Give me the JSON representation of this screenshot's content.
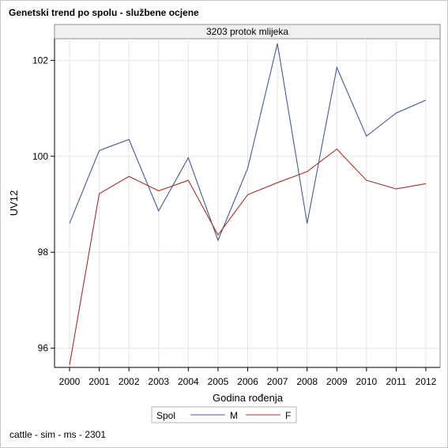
{
  "chart_data": {
    "type": "line",
    "title": "Genetski trend po spolu - službene ocjene",
    "panel_title": "3203 protok mlijeka",
    "xlabel": "Godina rođenja",
    "ylabel": "UV12",
    "categories": [
      "2000",
      "2001",
      "2002",
      "2003",
      "2004",
      "2005",
      "2006",
      "2007",
      "2008",
      "2009",
      "2010",
      "2011",
      "2012"
    ],
    "yticks": [
      96,
      98,
      100,
      102
    ],
    "ylim": [
      95.6,
      102.45
    ],
    "grid": true,
    "legend": {
      "title": "Spol",
      "placement": "bottom"
    },
    "series": [
      {
        "name": "M",
        "color": "#4a5a8c",
        "values": [
          98.6,
          100.12,
          100.35,
          98.86,
          99.97,
          98.25,
          99.75,
          102.35,
          98.6,
          101.85,
          100.42,
          100.9,
          101.17
        ]
      },
      {
        "name": "F",
        "color": "#a0322d",
        "values": [
          95.65,
          99.22,
          99.58,
          99.28,
          99.5,
          98.36,
          99.2,
          99.45,
          99.68,
          100.15,
          99.5,
          99.32,
          99.43
        ]
      }
    ]
  },
  "footnote": "cattle - sim - ms - 2301"
}
